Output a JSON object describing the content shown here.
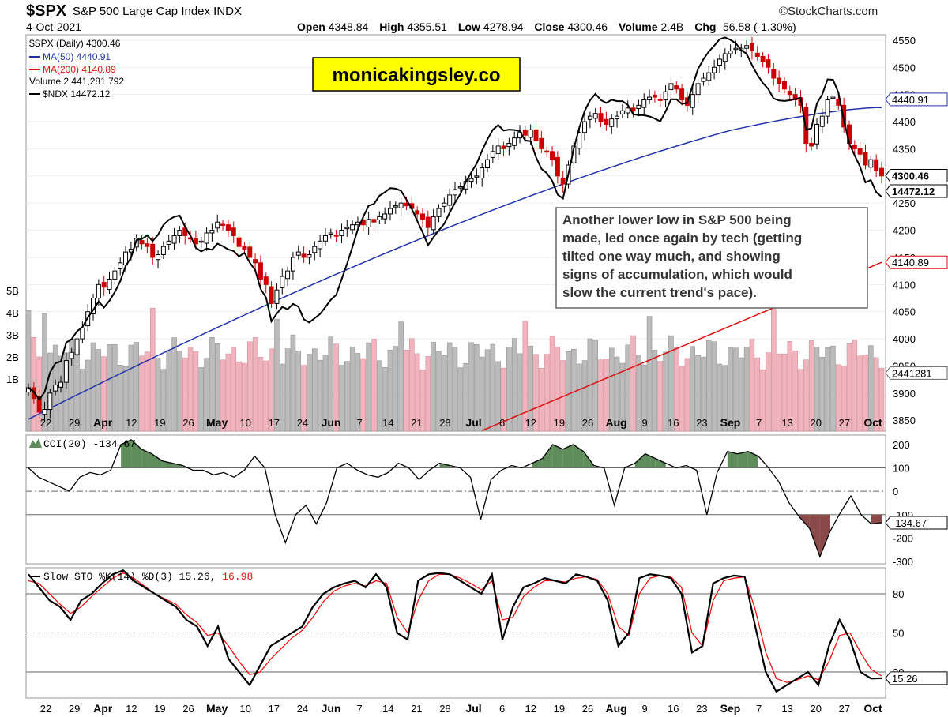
{
  "header": {
    "symbol": "$SPX",
    "name": "S&P 500 Large Cap Index  INDX",
    "logo": "©StockCharts.com",
    "date": "4-Oct-2021",
    "ohlc": [
      {
        "label": "Open",
        "value": "4348.84"
      },
      {
        "label": "High",
        "value": "4355.51"
      },
      {
        "label": "Low",
        "value": "4278.94"
      },
      {
        "label": "Close",
        "value": "4300.46"
      },
      {
        "label": "Volume",
        "value": "2.4B"
      },
      {
        "label": "Chg",
        "value": "-56.58 (-1.30%)"
      }
    ]
  },
  "legend": {
    "main": "$SPX (Daily) 4300.46",
    "ma50": "MA(50) 4440.91",
    "ma200": "MA(200) 4140.89",
    "volume": "Volume 2,441,281,792",
    "ndx": "$NDX 14472.12"
  },
  "watermark": "monicakingsley.co",
  "annotation": [
    "Another lower low in S&P 500 being",
    "made, led once again by tech (getting",
    "tilted one way much, and showing",
    "signs of accumulation, which would",
    "slow the current trend's pace)."
  ],
  "colors": {
    "up": "#000000",
    "down": "#cc0000",
    "ma50": "#2233aa",
    "ma200": "#dd1111",
    "vol_up": "#bbbbbb",
    "vol_down": "#f0b4bc",
    "cci_fill": "#5e8c5a",
    "cci_fill_neg": "#8a4a4a",
    "stoch_d": "#ee1111"
  },
  "chart_data": [
    {
      "type": "line",
      "title": "$SPX (Daily)",
      "ylim": [
        3830,
        4560
      ],
      "y_ticks": [
        3850,
        3900,
        3950,
        4000,
        4050,
        4100,
        4150,
        4200,
        4250,
        4300,
        4350,
        4400,
        4450,
        4500,
        4550
      ],
      "x_labels": [
        "22",
        "29",
        "Apr",
        "12",
        "19",
        "26",
        "May",
        "10",
        "17",
        "24",
        "Jun",
        "7",
        "14",
        "21",
        "28",
        "Jul",
        "6",
        "12",
        "19",
        "26",
        "Aug",
        "9",
        "16",
        "23",
        "Sep",
        "7",
        "13",
        "20",
        "27",
        "Oct"
      ],
      "volume_ticks": [
        "1B",
        "2B",
        "3B",
        "4B",
        "5B"
      ],
      "value_tags": [
        "4440.91",
        "4300.46",
        "14472.12",
        "4140.89",
        "2441281"
      ],
      "series": [
        {
          "name": "$SPX",
          "values": [
            3910,
            3890,
            3865,
            3870,
            3900,
            3915,
            3920,
            3960,
            3975,
            4000,
            4020,
            4050,
            4075,
            4100,
            4095,
            4110,
            4125,
            4140,
            4160,
            4165,
            4185,
            4175,
            4170,
            4150,
            4155,
            4170,
            4180,
            4190,
            4200,
            4190,
            4185,
            4175,
            4180,
            4195,
            4200,
            4215,
            4210,
            4200,
            4190,
            4170,
            4165,
            4150,
            4140,
            4110,
            4100,
            4065,
            4090,
            4115,
            4125,
            4150,
            4160,
            4150,
            4155,
            4170,
            4180,
            4190,
            4195,
            4190,
            4200,
            4205,
            4210,
            4215,
            4210,
            4220,
            4215,
            4225,
            4230,
            4240,
            4245,
            4250,
            4245,
            4240,
            4230,
            4220,
            4205,
            4225,
            4240,
            4250,
            4265,
            4275,
            4280,
            4290,
            4295,
            4300,
            4315,
            4330,
            4345,
            4355,
            4350,
            4360,
            4370,
            4380,
            4375,
            4385,
            4365,
            4350,
            4345,
            4330,
            4300,
            4285,
            4320,
            4355,
            4380,
            4400,
            4410,
            4415,
            4400,
            4395,
            4405,
            4410,
            4420,
            4425,
            4420,
            4430,
            4440,
            4445,
            4445,
            4440,
            4455,
            4470,
            4460,
            4440,
            4430,
            4450,
            4470,
            4480,
            4490,
            4500,
            4515,
            4525,
            4530,
            4535,
            4535,
            4540,
            4530,
            4520,
            4510,
            4500,
            4480,
            4470,
            4460,
            4450,
            4440,
            4430,
            4360,
            4355,
            4395,
            4410,
            4440,
            4445,
            4430,
            4390,
            4360,
            4350,
            4340,
            4320,
            4330,
            4310,
            4300
          ]
        },
        {
          "name": "MA(50)",
          "values": [
            3850,
            4440.91
          ]
        },
        {
          "name": "MA(200)",
          "values": [
            3830,
            4140.89
          ]
        }
      ]
    },
    {
      "type": "line",
      "title": "CCI(20) -134.67",
      "ylim": [
        -310,
        240
      ],
      "y_ticks": [
        200,
        100,
        0,
        -100,
        -200,
        -300
      ],
      "series": [
        {
          "name": "CCI(20)",
          "values": [
            100,
            60,
            40,
            20,
            0,
            60,
            80,
            70,
            90,
            200,
            220,
            180,
            160,
            130,
            120,
            110,
            90,
            90,
            70,
            80,
            60,
            90,
            150,
            100,
            -100,
            -220,
            -100,
            -60,
            -140,
            -50,
            100,
            120,
            90,
            70,
            60,
            80,
            120,
            100,
            50,
            90,
            120,
            110,
            100,
            60,
            -120,
            50,
            90,
            110,
            100,
            120,
            140,
            200,
            180,
            200,
            170,
            110,
            100,
            -60,
            100,
            120,
            160,
            140,
            120,
            100,
            110,
            90,
            -100,
            80,
            170,
            160,
            170,
            150,
            100,
            40,
            -50,
            -110,
            -160,
            -280,
            -170,
            -90,
            -20,
            -100,
            -140,
            -134.67
          ]
        }
      ]
    },
    {
      "type": "line",
      "title": "Slow STO %K(14) %D(3) 15.26, 16.98",
      "ylim": [
        0,
        100
      ],
      "y_ticks": [
        80,
        50,
        20
      ],
      "series": [
        {
          "name": "%K(14)",
          "values": [
            95,
            85,
            75,
            70,
            60,
            75,
            80,
            88,
            95,
            98,
            90,
            85,
            80,
            75,
            70,
            60,
            55,
            40,
            55,
            30,
            20,
            10,
            25,
            40,
            45,
            50,
            55,
            70,
            80,
            85,
            88,
            90,
            85,
            95,
            85,
            50,
            45,
            90,
            95,
            96,
            95,
            90,
            85,
            80,
            95,
            45,
            70,
            85,
            88,
            92,
            90,
            88,
            95,
            93,
            90,
            75,
            40,
            50,
            92,
            95,
            94,
            92,
            80,
            35,
            40,
            88,
            92,
            94,
            93,
            55,
            20,
            5,
            10,
            15,
            20,
            10,
            40,
            60,
            45,
            20,
            15,
            15.26
          ]
        },
        {
          "name": "%D(3)",
          "values": [
            90,
            88,
            80,
            72,
            65,
            70,
            78,
            85,
            92,
            96,
            92,
            86,
            80,
            76,
            72,
            64,
            58,
            48,
            50,
            40,
            28,
            18,
            20,
            30,
            38,
            46,
            52,
            62,
            74,
            82,
            86,
            88,
            86,
            90,
            88,
            62,
            50,
            75,
            90,
            95,
            95,
            92,
            88,
            83,
            90,
            60,
            62,
            78,
            85,
            90,
            90,
            89,
            92,
            93,
            91,
            80,
            55,
            48,
            80,
            92,
            94,
            93,
            85,
            50,
            40,
            75,
            90,
            92,
            93,
            68,
            35,
            15,
            12,
            14,
            17,
            14,
            28,
            48,
            50,
            35,
            22,
            16.98
          ]
        }
      ]
    }
  ]
}
